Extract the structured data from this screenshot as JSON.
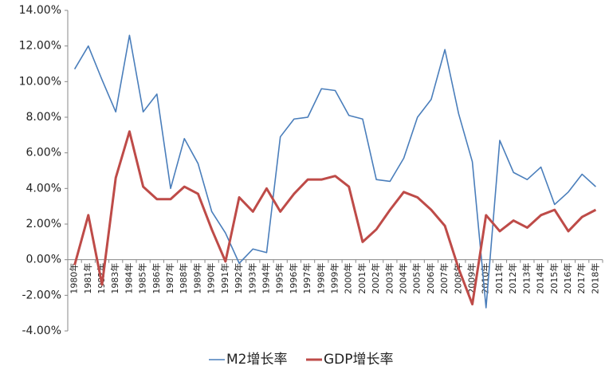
{
  "chart_data": {
    "type": "line",
    "categories": [
      "1980年",
      "1981年",
      "1982年",
      "1983年",
      "1984年",
      "1985年",
      "1986年",
      "1987年",
      "1988年",
      "1989年",
      "1990年",
      "1991年",
      "1992年",
      "1993年",
      "1994年",
      "1995年",
      "1996年",
      "1997年",
      "1998年",
      "1999年",
      "2000年",
      "2001年",
      "2002年",
      "2003年",
      "2004年",
      "2005年",
      "2006年",
      "2007年",
      "2008年",
      "2009年",
      "2010年",
      "2011年",
      "2012年",
      "2013年",
      "2014年",
      "2015年",
      "2016年",
      "2017年",
      "2018年"
    ],
    "series": [
      {
        "name": "M2增长率",
        "color": "#4a7ebb",
        "values": [
          10.7,
          12.0,
          10.1,
          8.3,
          12.6,
          8.3,
          9.3,
          4.0,
          6.8,
          5.4,
          2.7,
          1.5,
          -0.2,
          0.6,
          0.4,
          6.9,
          7.9,
          8.0,
          9.6,
          9.5,
          8.1,
          7.9,
          4.5,
          4.4,
          5.7,
          8.0,
          9.0,
          11.8,
          8.2,
          5.5,
          -2.7,
          6.7,
          4.9,
          4.5,
          5.2,
          3.1,
          3.8,
          4.8,
          4.1
        ]
      },
      {
        "name": "GDP增长率",
        "color": "#be4b48",
        "values": [
          -0.3,
          2.5,
          -1.4,
          4.6,
          7.2,
          4.1,
          3.4,
          3.4,
          4.1,
          3.7,
          1.7,
          -0.1,
          3.5,
          2.7,
          4.0,
          2.7,
          3.7,
          4.5,
          4.5,
          4.7,
          4.1,
          1.0,
          1.7,
          2.8,
          3.8,
          3.5,
          2.8,
          1.9,
          -0.5,
          -2.5,
          2.5,
          1.6,
          2.2,
          1.8,
          2.5,
          2.8,
          1.6,
          2.4,
          2.8
        ]
      }
    ],
    "ylim": [
      -4,
      14
    ],
    "yticks": [
      {
        "value": -4,
        "label": "-4.00%"
      },
      {
        "value": -2,
        "label": "-2.00%"
      },
      {
        "value": 0,
        "label": "0.00%"
      },
      {
        "value": 2,
        "label": "2.00%"
      },
      {
        "value": 4,
        "label": "4.00%"
      },
      {
        "value": 6,
        "label": "6.00%"
      },
      {
        "value": 8,
        "label": "8.00%"
      },
      {
        "value": 10,
        "label": "10.00%"
      },
      {
        "value": 12,
        "label": "12.00%"
      },
      {
        "value": 14,
        "label": "14.00%"
      }
    ],
    "legend": "bottom"
  }
}
